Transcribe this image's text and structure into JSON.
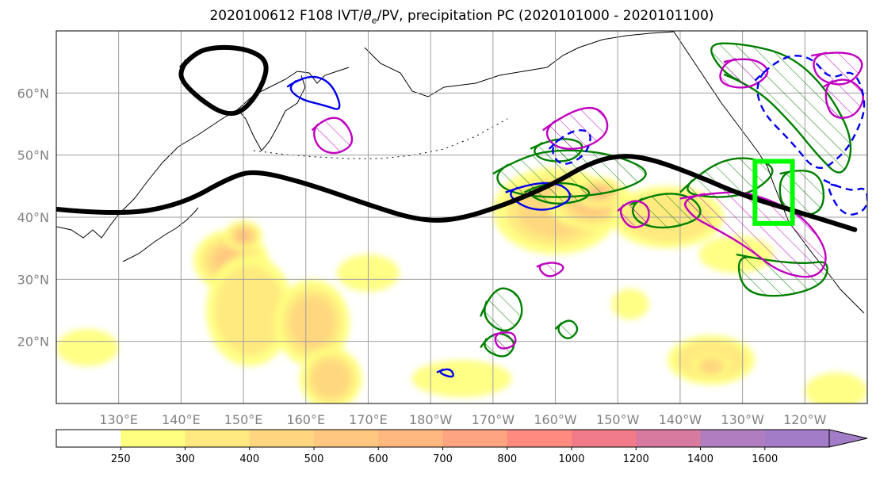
{
  "title_main": "2020100612 F108 IVT/",
  "title_symbol": "θ",
  "title_sub": "e",
  "title_tail": "/PV, precipitation PC (2020101000 - 2020101100)",
  "chart_data": {
    "type": "heatmap",
    "title": "2020100612 F108 IVT/θe/PV, precipitation PC (2020101000 - 2020101100)",
    "lat_ticks": [
      {
        "lat": 20,
        "label": "20°N"
      },
      {
        "lat": 30,
        "label": "30°N"
      },
      {
        "lat": 40,
        "label": "40°N"
      },
      {
        "lat": 50,
        "label": "50°N"
      },
      {
        "lat": 60,
        "label": "60°N"
      }
    ],
    "lon_ticks": [
      {
        "lon": 130,
        "label": "130°E"
      },
      {
        "lon": 140,
        "label": "140°E"
      },
      {
        "lon": 150,
        "label": "150°E"
      },
      {
        "lon": 160,
        "label": "160°E"
      },
      {
        "lon": 170,
        "label": "170°E"
      },
      {
        "lon": 180,
        "label": "180°W"
      },
      {
        "lon": 190,
        "label": "170°W"
      },
      {
        "lon": 200,
        "label": "160°W"
      },
      {
        "lon": 210,
        "label": "150°W"
      },
      {
        "lon": 220,
        "label": "140°W"
      },
      {
        "lon": 230,
        "label": "130°W"
      },
      {
        "lon": 240,
        "label": "120°W"
      }
    ],
    "lon_range": [
      120,
      250
    ],
    "lat_range": [
      10,
      70
    ],
    "grid": true,
    "colorbar": {
      "levels": [
        "250",
        "300",
        "400",
        "500",
        "600",
        "700",
        "800",
        "1000",
        "1200",
        "1400",
        "1600"
      ],
      "colors": [
        "#ffffff",
        "#ffff80",
        "#ffe980",
        "#ffd680",
        "#ffc780",
        "#ffb880",
        "#ffa480",
        "#ff8a80",
        "#f07a88",
        "#d87aa0",
        "#b07ec0",
        "#a37cc8"
      ]
    },
    "jet_line": [
      [
        120,
        41.3
      ],
      [
        130,
        40.3
      ],
      [
        140,
        42
      ],
      [
        148,
        46.5
      ],
      [
        152,
        47.5
      ],
      [
        160,
        45.5
      ],
      [
        170,
        42
      ],
      [
        178,
        39.5
      ],
      [
        184,
        39.5
      ],
      [
        192,
        42
      ],
      [
        200,
        45.5
      ],
      [
        205,
        48.5
      ],
      [
        210,
        50
      ],
      [
        215,
        49.5
      ],
      [
        222,
        47
      ],
      [
        230,
        43.5
      ],
      [
        240,
        40.5
      ],
      [
        248,
        38
      ]
    ],
    "high_contour": [
      [
        140,
        64
      ],
      [
        142,
        66.5
      ],
      [
        146,
        67.5
      ],
      [
        151,
        67
      ],
      [
        154,
        65
      ],
      [
        153,
        61
      ],
      [
        150,
        57
      ],
      [
        147,
        56.5
      ],
      [
        143,
        59
      ],
      [
        140,
        62
      ]
    ],
    "ivt_blobs": [
      {
        "lon": 148,
        "lat": 33,
        "rx": 6,
        "ry": 5,
        "level": 3
      },
      {
        "lon": 150,
        "lat": 37,
        "rx": 3,
        "ry": 2.5,
        "level": 4
      },
      {
        "lon": 151,
        "lat": 25,
        "rx": 7,
        "ry": 9,
        "level": 1
      },
      {
        "lon": 161,
        "lat": 23,
        "rx": 6,
        "ry": 7,
        "level": 2
      },
      {
        "lon": 164,
        "lat": 14,
        "rx": 5,
        "ry": 5,
        "level": 2
      },
      {
        "lon": 125,
        "lat": 19,
        "rx": 5,
        "ry": 3,
        "level": 0
      },
      {
        "lon": 170,
        "lat": 31,
        "rx": 5,
        "ry": 3,
        "level": 0
      },
      {
        "lon": 200,
        "lat": 41,
        "rx": 10,
        "ry": 7,
        "level": 2
      },
      {
        "lon": 206,
        "lat": 42,
        "rx": 7,
        "ry": 4,
        "level": 3
      },
      {
        "lon": 207,
        "lat": 44,
        "rx": 4,
        "ry": 2.5,
        "level": 4
      },
      {
        "lon": 218,
        "lat": 40,
        "rx": 9,
        "ry": 5,
        "level": 1
      },
      {
        "lon": 229,
        "lat": 34,
        "rx": 6,
        "ry": 3,
        "level": 0
      },
      {
        "lon": 212,
        "lat": 26,
        "rx": 3,
        "ry": 2.5,
        "level": 0
      },
      {
        "lon": 225,
        "lat": 17,
        "rx": 7,
        "ry": 4,
        "level": 1
      },
      {
        "lon": 225,
        "lat": 16,
        "rx": 3,
        "ry": 2,
        "level": 2
      },
      {
        "lon": 185,
        "lat": 14,
        "rx": 8,
        "ry": 3,
        "level": 0
      },
      {
        "lon": 245,
        "lat": 12,
        "rx": 5,
        "ry": 3,
        "level": 0
      }
    ],
    "precip_regions": [
      [
        [
          195,
          44
        ],
        [
          198,
          45.5
        ],
        [
          203,
          45.5
        ],
        [
          206,
          44
        ],
        [
          204,
          42.5
        ],
        [
          199,
          42
        ]
      ],
      [
        [
          190,
          47
        ],
        [
          195,
          50
        ],
        [
          202,
          51
        ],
        [
          210,
          50
        ],
        [
          216,
          47
        ],
        [
          210,
          44
        ],
        [
          200,
          43
        ],
        [
          192,
          44
        ]
      ],
      [
        [
          212,
          42
        ],
        [
          216,
          44
        ],
        [
          222,
          43.5
        ],
        [
          224,
          40
        ],
        [
          218,
          38
        ],
        [
          213,
          39
        ]
      ],
      [
        [
          227,
          63
        ],
        [
          232,
          61
        ],
        [
          238,
          55
        ],
        [
          242,
          50
        ],
        [
          246,
          46
        ],
        [
          248,
          52
        ],
        [
          244,
          60
        ],
        [
          238,
          66
        ],
        [
          230,
          68
        ],
        [
          224,
          68
        ]
      ],
      [
        [
          236,
          47
        ],
        [
          240,
          48
        ],
        [
          243,
          46
        ],
        [
          243,
          41
        ],
        [
          239,
          40
        ],
        [
          236,
          42
        ]
      ],
      [
        [
          196,
          51
        ],
        [
          200,
          53
        ],
        [
          205,
          52
        ],
        [
          203,
          49
        ],
        [
          198,
          49
        ]
      ],
      [
        [
          229,
          34
        ],
        [
          234,
          33
        ],
        [
          240,
          32.5
        ],
        [
          244,
          33
        ],
        [
          243,
          29
        ],
        [
          236,
          27
        ],
        [
          230,
          28
        ]
      ],
      [
        [
          188,
          24
        ],
        [
          190,
          29
        ],
        [
          194,
          28
        ],
        [
          195,
          24
        ],
        [
          192,
          21
        ]
      ],
      [
        [
          188,
          19
        ],
        [
          190,
          22
        ],
        [
          194,
          20
        ],
        [
          192,
          17
        ]
      ],
      [
        [
          200,
          22
        ],
        [
          202,
          24
        ],
        [
          204,
          22
        ],
        [
          202,
          20
        ]
      ],
      [
        [
          220,
          44
        ],
        [
          224,
          48
        ],
        [
          230,
          50
        ],
        [
          236,
          48
        ],
        [
          232,
          44
        ],
        [
          226,
          43
        ]
      ]
    ],
    "magenta_regions": [
      [
        [
          161,
          54
        ],
        [
          163,
          56
        ],
        [
          166,
          56
        ],
        [
          168,
          52
        ],
        [
          165,
          50
        ],
        [
          162,
          51
        ]
      ],
      [
        [
          198,
          54
        ],
        [
          202,
          57
        ],
        [
          207,
          58
        ],
        [
          209,
          54
        ],
        [
          205,
          51
        ],
        [
          200,
          51
        ]
      ],
      [
        [
          220,
          43
        ],
        [
          228,
          44.5
        ],
        [
          234,
          43
        ],
        [
          240,
          40
        ],
        [
          244,
          34
        ],
        [
          242,
          30
        ],
        [
          236,
          31
        ],
        [
          231,
          35
        ],
        [
          226,
          38
        ],
        [
          222,
          40
        ]
      ],
      [
        [
          210,
          41
        ],
        [
          212,
          43
        ],
        [
          215,
          42
        ],
        [
          215,
          39
        ],
        [
          212,
          38
        ]
      ],
      [
        [
          227,
          65
        ],
        [
          231,
          66
        ],
        [
          235,
          63.5
        ],
        [
          231,
          60.5
        ],
        [
          226,
          61.5
        ]
      ],
      [
        [
          241,
          66
        ],
        [
          246,
          67
        ],
        [
          250,
          65
        ],
        [
          247,
          61
        ],
        [
          242,
          62
        ]
      ],
      [
        [
          243,
          61
        ],
        [
          246,
          63
        ],
        [
          250,
          60
        ],
        [
          248,
          56
        ],
        [
          244,
          56
        ]
      ],
      [
        [
          190,
          21
        ],
        [
          193,
          22
        ],
        [
          194,
          19.5
        ],
        [
          191,
          18.5
        ]
      ],
      [
        [
          197,
          32
        ],
        [
          199,
          33
        ],
        [
          202,
          32
        ],
        [
          199,
          30
        ]
      ]
    ],
    "blue_solid_regions": [
      [
        [
          157,
          61
        ],
        [
          160,
          63
        ],
        [
          164,
          62
        ],
        [
          166,
          57
        ],
        [
          163,
          58
        ],
        [
          159,
          59
        ]
      ],
      [
        [
          192,
          44
        ],
        [
          196,
          45.5
        ],
        [
          201,
          45.5
        ],
        [
          203,
          43
        ],
        [
          199,
          41
        ],
        [
          195,
          41.5
        ]
      ],
      [
        [
          181,
          15
        ],
        [
          183,
          16
        ],
        [
          184,
          14
        ]
      ]
    ],
    "blue_dashed_regions": [
      [
        [
          232,
          62
        ],
        [
          236,
          66
        ],
        [
          241,
          66
        ],
        [
          244,
          62
        ],
        [
          248,
          64
        ],
        [
          250,
          58
        ],
        [
          248,
          53
        ],
        [
          246,
          50
        ],
        [
          242,
          47
        ],
        [
          238,
          52
        ],
        [
          233,
          57
        ]
      ],
      [
        [
          199,
          51
        ],
        [
          202,
          54
        ],
        [
          206,
          54
        ],
        [
          205,
          50
        ],
        [
          201,
          48
        ]
      ],
      [
        [
          243,
          46
        ],
        [
          247,
          44
        ],
        [
          250,
          45
        ],
        [
          250,
          41
        ],
        [
          246,
          40
        ]
      ]
    ],
    "green_box": {
      "lon": [
        232,
        238
      ],
      "lat": [
        39,
        49
      ]
    }
  }
}
